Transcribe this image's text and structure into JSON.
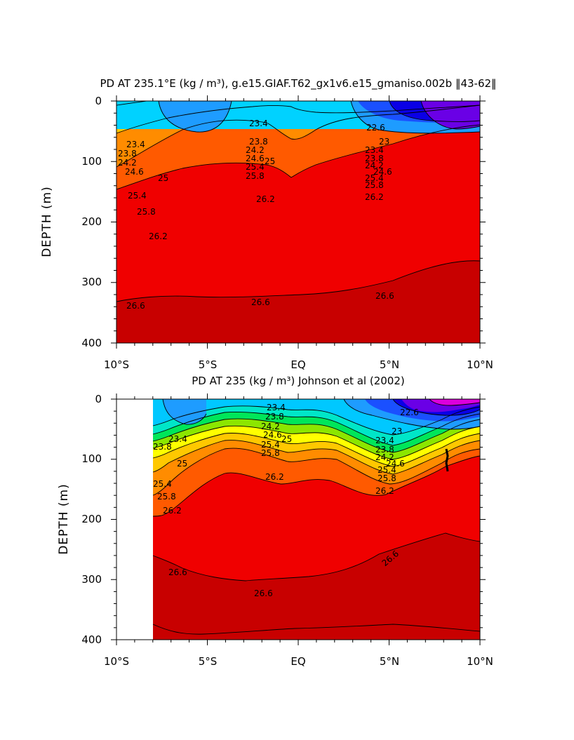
{
  "chart_data": [
    {
      "type": "heatmap",
      "title": "PD AT 235.1°E (kg / m³), g.e15.GIAF.T62_gx1v6.e15_gmaniso.002b ‖43-62‖",
      "ylabel": "DEPTH (m)",
      "xlabel": "",
      "xlim": [
        -10,
        10
      ],
      "ylim": [
        400,
        0
      ],
      "x_ticks": [
        "10°S",
        "5°S",
        "EQ",
        "5°N",
        "10°N"
      ],
      "y_ticks": [
        "0",
        "100",
        "200",
        "300",
        "400"
      ],
      "grid": false,
      "contour_levels": [
        22.6,
        23.0,
        23.4,
        23.8,
        24.2,
        24.6,
        25.0,
        25.4,
        25.8,
        26.2,
        26.6
      ],
      "contour_labels": [
        "23.4",
        "23.8",
        "24.2",
        "24.6",
        "25",
        "25.4",
        "25.8",
        "26.2",
        "26.6",
        "22.6",
        "23"
      ],
      "series": [
        {
          "name": "22.6",
          "x": [
            -10,
            -5,
            0,
            5,
            7,
            10
          ],
          "y": [
            null,
            null,
            null,
            45,
            40,
            35
          ]
        },
        {
          "name": "23.0",
          "x": [
            -10,
            -5,
            0,
            3,
            5,
            10
          ],
          "y": [
            60,
            55,
            40,
            55,
            65,
            45
          ]
        },
        {
          "name": "23.4",
          "x": [
            -10,
            -5,
            0,
            5,
            10
          ],
          "y": [
            75,
            70,
            55,
            75,
            70
          ]
        },
        {
          "name": "23.8",
          "x": [
            -10,
            -5,
            0,
            5,
            10
          ],
          "y": [
            88,
            85,
            70,
            90,
            85
          ]
        },
        {
          "name": "24.2",
          "x": [
            -10,
            -5,
            0,
            5,
            10
          ],
          "y": [
            100,
            98,
            85,
            100,
            95
          ]
        },
        {
          "name": "24.6",
          "x": [
            -10,
            -5,
            0,
            5,
            10
          ],
          "y": [
            118,
            110,
            100,
            110,
            105
          ]
        },
        {
          "name": "25.0",
          "x": [
            -10,
            -5,
            0,
            5,
            10
          ],
          "y": [
            130,
            122,
            112,
            120,
            113
          ]
        },
        {
          "name": "25.4",
          "x": [
            -10,
            -5,
            0,
            5,
            10
          ],
          "y": [
            160,
            140,
            130,
            135,
            122
          ]
        },
        {
          "name": "25.8",
          "x": [
            -10,
            -5,
            0,
            5,
            10
          ],
          "y": [
            190,
            165,
            150,
            150,
            135
          ]
        },
        {
          "name": "26.2",
          "x": [
            -10,
            -5,
            0,
            5,
            10
          ],
          "y": [
            240,
            170,
            185,
            160,
            145
          ]
        },
        {
          "name": "26.6",
          "x": [
            -10,
            -5,
            -2,
            0,
            3,
            5,
            10
          ],
          "y": [
            345,
            335,
            335,
            330,
            335,
            320,
            295
          ]
        }
      ],
      "colors": [
        "#6a00e6",
        "#0a00e6",
        "#1a50ff",
        "#1e9cff",
        "#00c8ff",
        "#00e6c8",
        "#00e65a",
        "#8ce600",
        "#ffff00",
        "#ffc800",
        "#ff8c00",
        "#ff5a00",
        "#f00000",
        "#c80000"
      ]
    },
    {
      "type": "heatmap",
      "title": "PD AT 235 (kg / m³) Johnson et al (2002)",
      "ylabel": "DEPTH (m)",
      "xlabel": "",
      "xlim": [
        -10,
        10
      ],
      "ylim": [
        400,
        0
      ],
      "x_ticks": [
        "10°S",
        "5°S",
        "EQ",
        "5°N",
        "10°N"
      ],
      "y_ticks": [
        "0",
        "100",
        "200",
        "300",
        "400"
      ],
      "grid": false,
      "data_extent_x": [
        -8,
        10
      ],
      "contour_levels": [
        22.6,
        23.0,
        23.4,
        23.8,
        24.2,
        24.6,
        25.0,
        25.4,
        25.8,
        26.2,
        26.6
      ],
      "contour_labels": [
        "23.4",
        "23.8",
        "24.2",
        "24.6",
        "25",
        "25.4",
        "25.8",
        "26.2",
        "26.6",
        "22.6",
        "23"
      ],
      "series": [
        {
          "name": "22.6",
          "x": [
            4,
            6,
            8,
            10
          ],
          "y": [
            20,
            25,
            25,
            15
          ]
        },
        {
          "name": "23.0",
          "x": [
            -8,
            -5,
            0,
            5,
            8,
            10
          ],
          "y": [
            55,
            60,
            30,
            55,
            45,
            30
          ]
        },
        {
          "name": "23.4",
          "x": [
            -8,
            -5,
            0,
            5,
            8,
            10
          ],
          "y": [
            75,
            70,
            40,
            80,
            55,
            40
          ]
        },
        {
          "name": "23.8",
          "x": [
            -8,
            -5,
            0,
            5,
            8,
            10
          ],
          "y": [
            85,
            80,
            50,
            95,
            65,
            50
          ]
        },
        {
          "name": "24.2",
          "x": [
            -8,
            -5,
            0,
            5,
            8,
            10
          ],
          "y": [
            95,
            85,
            60,
            105,
            75,
            55
          ]
        },
        {
          "name": "24.6",
          "x": [
            -8,
            -5,
            0,
            5,
            8,
            10
          ],
          "y": [
            105,
            90,
            70,
            115,
            80,
            60
          ]
        },
        {
          "name": "25.0",
          "x": [
            -8,
            -5,
            0,
            5,
            8,
            10
          ],
          "y": [
            120,
            95,
            80,
            125,
            85,
            65
          ]
        },
        {
          "name": "25.4",
          "x": [
            -8,
            -5,
            0,
            5,
            8,
            10
          ],
          "y": [
            140,
            100,
            90,
            130,
            90,
            75
          ]
        },
        {
          "name": "25.8",
          "x": [
            -8,
            -5,
            0,
            5,
            8,
            10
          ],
          "y": [
            160,
            110,
            100,
            135,
            100,
            85
          ]
        },
        {
          "name": "26.2",
          "x": [
            -8,
            -5,
            0,
            5,
            8,
            10
          ],
          "y": [
            190,
            120,
            125,
            150,
            110,
            100
          ]
        },
        {
          "name": "26.6",
          "x": [
            -8,
            -5,
            -2,
            0,
            3,
            5,
            8,
            10
          ],
          "y": [
            280,
            310,
            335,
            330,
            310,
            270,
            225,
            240
          ]
        }
      ],
      "colors": [
        "#dc00dc",
        "#6a00e6",
        "#0a00e6",
        "#1a50ff",
        "#1e9cff",
        "#00c8ff",
        "#00e6c8",
        "#00e65a",
        "#8ce600",
        "#ffff00",
        "#ffc800",
        "#ff8c00",
        "#ff5a00",
        "#f00000",
        "#c80000"
      ]
    }
  ]
}
